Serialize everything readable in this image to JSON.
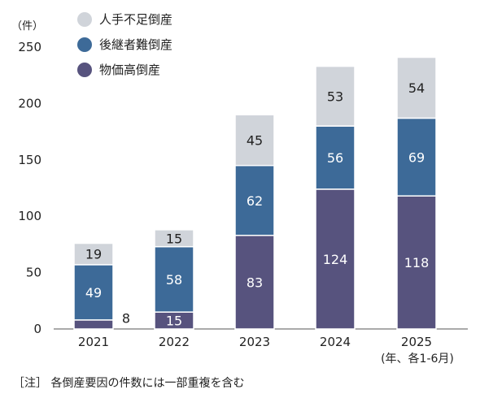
{
  "chart_data": {
    "type": "bar",
    "stacked": true,
    "categories": [
      "2021",
      "2022",
      "2023",
      "2024",
      "2025"
    ],
    "category_note": "(年、各1-6月)",
    "series": [
      {
        "name": "物価高倒産",
        "color": "#57537e",
        "values": [
          8,
          15,
          83,
          124,
          118
        ]
      },
      {
        "name": "後継者難倒産",
        "color": "#3d6a98",
        "values": [
          49,
          58,
          62,
          56,
          69
        ]
      },
      {
        "name": "人手不足倒産",
        "color": "#d0d4da",
        "values": [
          19,
          15,
          45,
          53,
          54
        ]
      }
    ],
    "legend_order": [
      2,
      1,
      0
    ],
    "legend_position": "top-left",
    "yunit": "（件）",
    "ylim": [
      0,
      250
    ],
    "yticks": [
      "0",
      "50",
      "100",
      "150",
      "200",
      "250"
    ],
    "grid": false,
    "note": "［注］ 各倒産要因の件数には一部重複を含む"
  }
}
